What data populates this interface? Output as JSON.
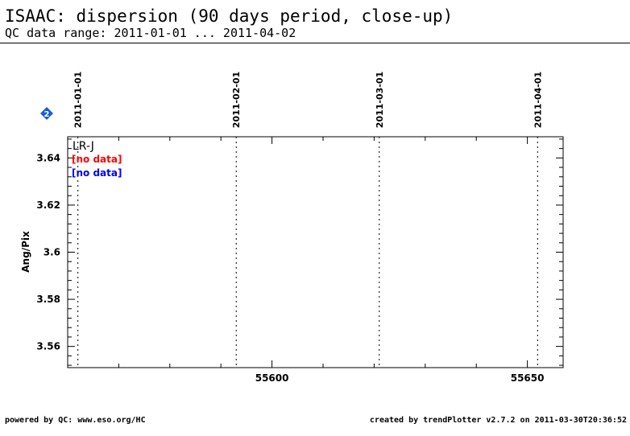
{
  "header": {
    "title": "ISAAC: dispersion (90 days period, close-up)",
    "subtitle": "QC data range: 2011-01-01 ... 2011-04-02"
  },
  "footer": {
    "left": "powered by QC: www.eso.org/HC",
    "right": "created by trendPlotter v2.7.2 on 2011-03-30T20:36:52"
  },
  "badge": {
    "icon": "diamond-2-icon",
    "label": "2",
    "color": "#1a5bd6"
  },
  "colors": {
    "no_data_1": "#ff0000",
    "no_data_2": "#0000ff",
    "text": "#000000"
  },
  "chart_data": {
    "type": "line",
    "title": "",
    "ylabel": "Ang/Pix",
    "xlabel": "",
    "xlim": [
      55560,
      55657
    ],
    "ylim": [
      3.551,
      3.649
    ],
    "x_ticks": [
      55600,
      55650
    ],
    "x_tick_labels": [
      "55600",
      "55650"
    ],
    "y_ticks": [
      3.56,
      3.58,
      3.6,
      3.62,
      3.64
    ],
    "y_tick_labels": [
      "3.56",
      "3.58",
      "3.6",
      "3.62",
      "3.64"
    ],
    "date_markers": [
      {
        "x": 55562,
        "label": "2011-01-01"
      },
      {
        "x": 55593,
        "label": "2011-02-01"
      },
      {
        "x": 55621,
        "label": "2011-03-01"
      },
      {
        "x": 55652,
        "label": "2011-04-01"
      }
    ],
    "panel_label": "LR-J",
    "annotations": [
      "[no data]",
      "[no data]"
    ],
    "series": []
  }
}
